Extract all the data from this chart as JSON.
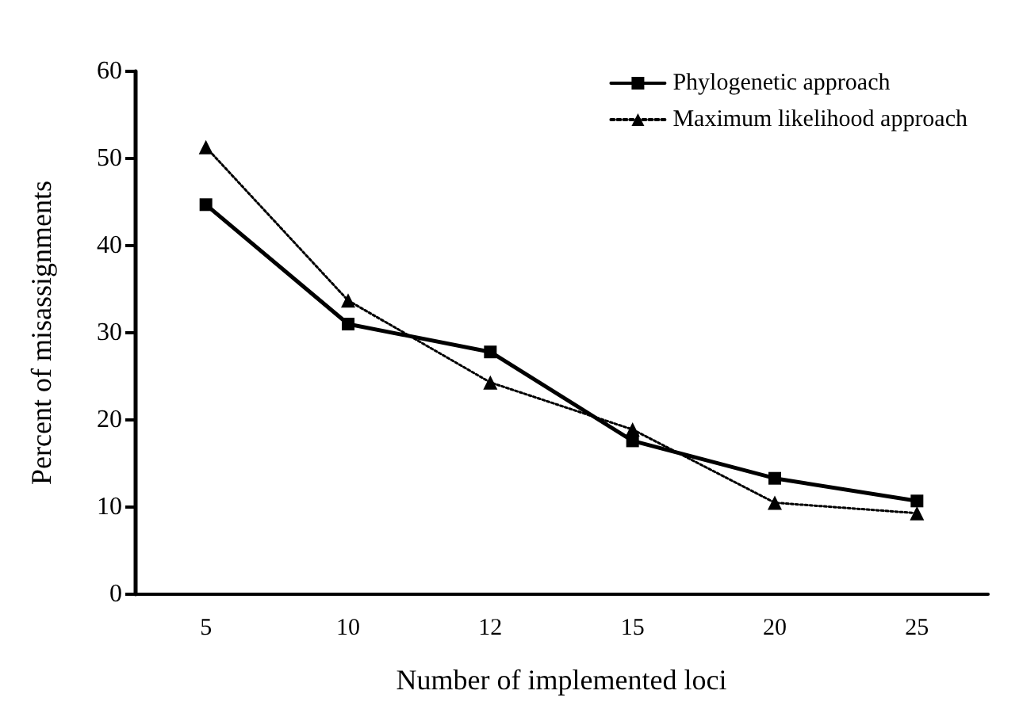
{
  "chart_data": {
    "type": "line",
    "xlabel": "Number of implemented loci",
    "ylabel": "Percent of misassignments",
    "categories": [
      "5",
      "10",
      "12",
      "15",
      "20",
      "25"
    ],
    "ylim": [
      0,
      60
    ],
    "yticks": [
      0,
      10,
      20,
      30,
      40,
      50,
      60
    ],
    "grid": false,
    "legend": "top right",
    "series": [
      {
        "name": "Phylogenetic approach",
        "color": "#000000",
        "marker": "square",
        "line_style": "solid",
        "values": [
          44.7,
          31.0,
          27.8,
          17.6,
          13.3,
          10.7
        ]
      },
      {
        "name": "Maximum likelihood approach",
        "color": "#000000",
        "marker": "triangle",
        "line_style": "dotted",
        "values": [
          51.3,
          33.7,
          24.3,
          18.9,
          10.5,
          9.3
        ]
      }
    ]
  }
}
